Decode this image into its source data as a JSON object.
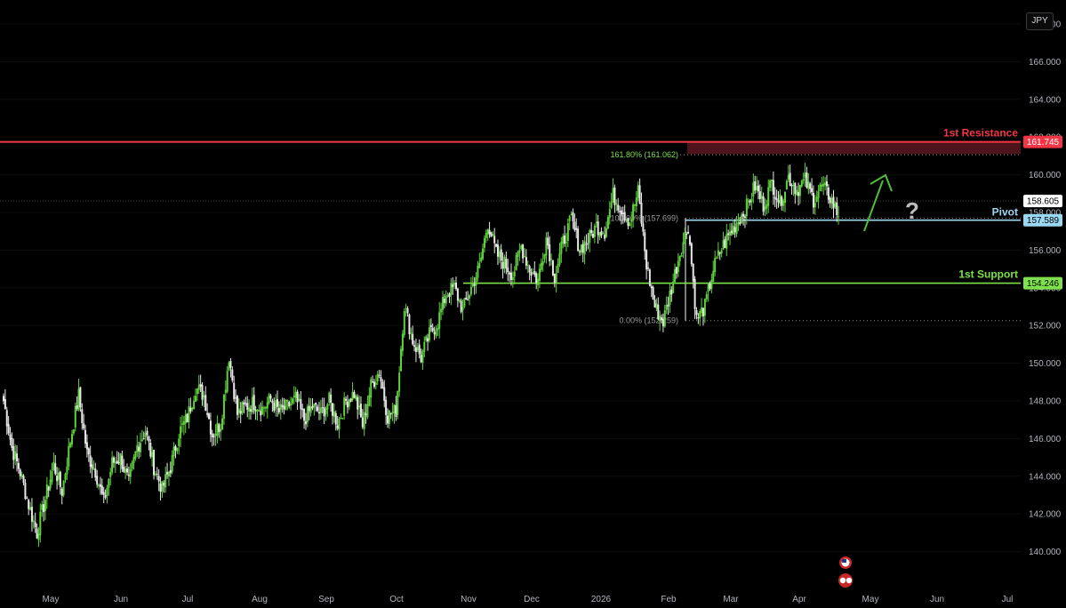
{
  "currency": "JPY",
  "colors": {
    "background": "#000000",
    "bull": "#5fd13b",
    "bear": "#e8e8e8",
    "resistance": "#f23645",
    "support": "#7ee04a",
    "pivot": "#9ad7f0",
    "arrow": "#4fbf3a"
  },
  "chart_data": {
    "type": "candlestick",
    "title": "",
    "ylim": [
      139.5,
      169.5
    ],
    "y_ticks": [
      168,
      166,
      164,
      162,
      160,
      158,
      156,
      154,
      152,
      150,
      148,
      146,
      144,
      142,
      140
    ],
    "y_tick_labels": [
      "168.000",
      "166.000",
      "164.000",
      "162.000",
      "160.000",
      "158.000",
      "156.000",
      "154.000",
      "152.000",
      "150.000",
      "148.000",
      "146.000",
      "144.000",
      "142.000",
      "140.000"
    ],
    "x_labels": [
      "May",
      "Jun",
      "Jul",
      "Aug",
      "Sep",
      "Oct",
      "Nov",
      "Dec",
      "2026",
      "Feb",
      "Mar",
      "Apr",
      "May",
      "Jun",
      "Jul"
    ],
    "price_path": [
      [
        0,
        148.0
      ],
      [
        1,
        145.5
      ],
      [
        2,
        144.2
      ],
      [
        3,
        142.5
      ],
      [
        4,
        141.0
      ],
      [
        5,
        142.8
      ],
      [
        6,
        144.6
      ],
      [
        7,
        143.2
      ],
      [
        8,
        145.9
      ],
      [
        9,
        148.3
      ],
      [
        10,
        145.2
      ],
      [
        11,
        144.3
      ],
      [
        12,
        142.6
      ],
      [
        13,
        144.7
      ],
      [
        14,
        145.0
      ],
      [
        15,
        143.6
      ],
      [
        16,
        145.6
      ],
      [
        17,
        146.4
      ],
      [
        18,
        144.5
      ],
      [
        19,
        143.3
      ],
      [
        20,
        144.5
      ],
      [
        21,
        146.3
      ],
      [
        22,
        147.1
      ],
      [
        23,
        148.7
      ],
      [
        24,
        148.3
      ],
      [
        25,
        146.2
      ],
      [
        26,
        146.8
      ],
      [
        27,
        150.4
      ],
      [
        28,
        147.3
      ],
      [
        29,
        147.7
      ],
      [
        30,
        147.9
      ],
      [
        31,
        147.6
      ],
      [
        32,
        148.1
      ],
      [
        33,
        147.4
      ],
      [
        34,
        147.7
      ],
      [
        35,
        148.1
      ],
      [
        36,
        147.0
      ],
      [
        37,
        147.7
      ],
      [
        38,
        147.3
      ],
      [
        39,
        148.0
      ],
      [
        40,
        146.8
      ],
      [
        41,
        148.0
      ],
      [
        42,
        148.4
      ],
      [
        43,
        146.7
      ],
      [
        44,
        148.8
      ],
      [
        45,
        149.6
      ],
      [
        46,
        147.2
      ],
      [
        47,
        147.5
      ],
      [
        48,
        153.1
      ],
      [
        49,
        151.2
      ],
      [
        50,
        150.3
      ],
      [
        51,
        151.5
      ],
      [
        52,
        152.2
      ],
      [
        53,
        153.7
      ],
      [
        54,
        154.0
      ],
      [
        55,
        152.8
      ],
      [
        56,
        154.0
      ],
      [
        57,
        155.1
      ],
      [
        58,
        157.5
      ],
      [
        59,
        155.8
      ],
      [
        60,
        155.3
      ],
      [
        61,
        154.7
      ],
      [
        62,
        156.2
      ],
      [
        63,
        155.0
      ],
      [
        64,
        154.4
      ],
      [
        65,
        156.7
      ],
      [
        66,
        154.6
      ],
      [
        67,
        156.4
      ],
      [
        68,
        157.6
      ],
      [
        69,
        156.1
      ],
      [
        70,
        156.5
      ],
      [
        71,
        157.3
      ],
      [
        72,
        157.0
      ],
      [
        73,
        158.9
      ],
      [
        74,
        158.2
      ],
      [
        75,
        157.5
      ],
      [
        76,
        159.1
      ],
      [
        77,
        155.2
      ],
      [
        78,
        153.0
      ],
      [
        79,
        152.2
      ],
      [
        80,
        154.0
      ],
      [
        81,
        155.9
      ],
      [
        82,
        157.3
      ],
      [
        83,
        152.3
      ],
      [
        84,
        153.0
      ],
      [
        85,
        155.0
      ],
      [
        86,
        156.1
      ],
      [
        87,
        156.9
      ],
      [
        88,
        157.6
      ],
      [
        89,
        158.3
      ],
      [
        90,
        159.4
      ],
      [
        91,
        158.4
      ],
      [
        92,
        159.6
      ],
      [
        93,
        158.5
      ],
      [
        94,
        159.9
      ],
      [
        95,
        159.2
      ],
      [
        96,
        159.7
      ],
      [
        97,
        158.7
      ],
      [
        98,
        159.4
      ],
      [
        99,
        158.8
      ],
      [
        100,
        157.8
      ]
    ],
    "levels": [
      {
        "name": "1st Resistance",
        "label": "1st Resistance",
        "price": 161.745,
        "price_label": "161.745"
      },
      {
        "name": "Pivot",
        "label": "Pivot",
        "price": 157.589,
        "price_label": "157.589"
      },
      {
        "name": "1st Support",
        "label": "1st Support",
        "price": 154.246,
        "price_label": "154.246"
      }
    ],
    "current_price": {
      "value": 158.605,
      "label": "158.605"
    },
    "fib_levels": [
      {
        "ratio": "161.80% (161.062)",
        "price": 161.062
      },
      {
        "ratio": "100.00% (157.699)",
        "price": 157.699
      },
      {
        "ratio": "0.00% (152.259)",
        "price": 152.259
      }
    ],
    "annotation": "?"
  }
}
